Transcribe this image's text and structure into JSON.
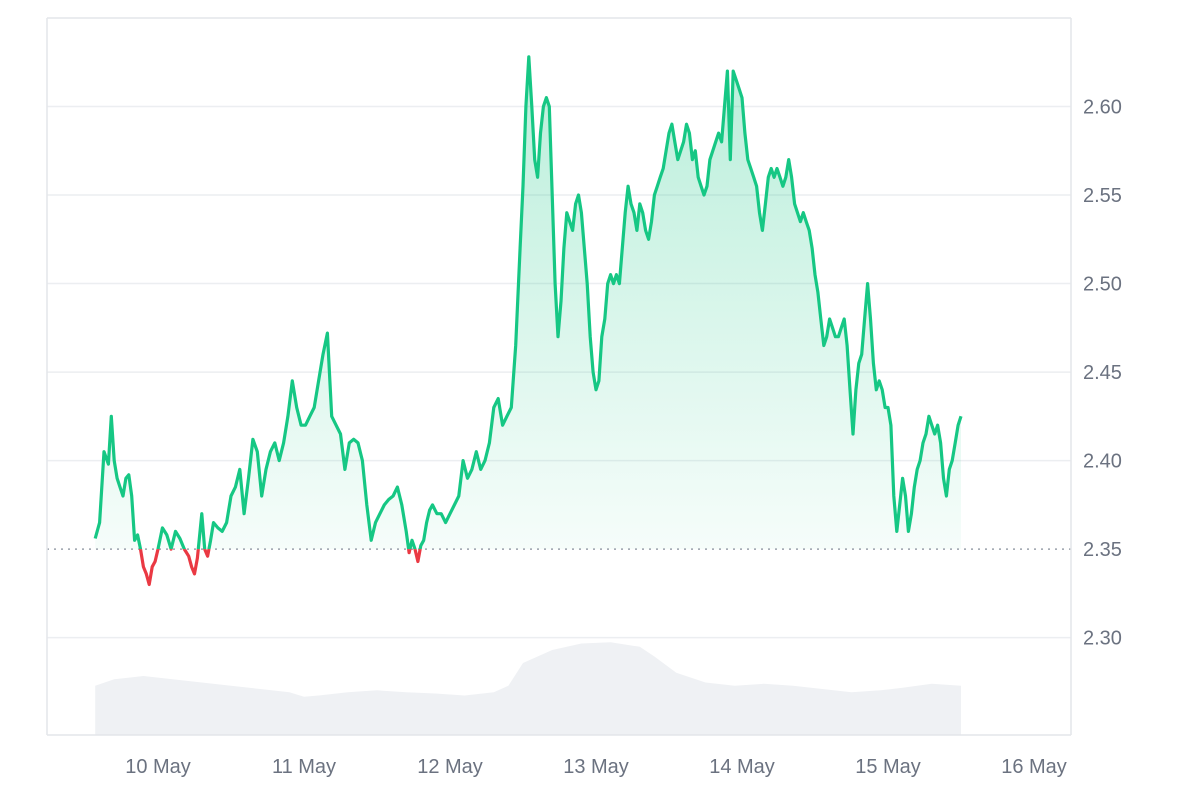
{
  "chart_data": {
    "type": "area",
    "title": "",
    "xlabel": "",
    "ylabel": "",
    "x_ticks": [
      "10 May",
      "11 May",
      "12 May",
      "13 May",
      "14 May",
      "15 May",
      "16 May"
    ],
    "y_ticks": [
      "2.60",
      "2.55",
      "2.50",
      "2.45",
      "2.40",
      "2.35",
      "2.30"
    ],
    "ylim": [
      2.245,
      2.65
    ],
    "grid": true,
    "baseline": 2.35,
    "colors": {
      "up": "#16c784",
      "down": "#ea3943",
      "volume": "#eff1f4",
      "baseline": "#9aa1ab"
    },
    "x_unit": "days since 9 May 00:00",
    "price_series": {
      "name": "Price",
      "points": [
        [
          0.57,
          2.356
        ],
        [
          0.6,
          2.365
        ],
        [
          0.63,
          2.405
        ],
        [
          0.66,
          2.398
        ],
        [
          0.68,
          2.425
        ],
        [
          0.7,
          2.4
        ],
        [
          0.72,
          2.39
        ],
        [
          0.74,
          2.385
        ],
        [
          0.76,
          2.38
        ],
        [
          0.78,
          2.39
        ],
        [
          0.8,
          2.392
        ],
        [
          0.82,
          2.38
        ],
        [
          0.84,
          2.355
        ],
        [
          0.86,
          2.358
        ],
        [
          0.88,
          2.35
        ],
        [
          0.9,
          2.34
        ],
        [
          0.92,
          2.336
        ],
        [
          0.94,
          2.33
        ],
        [
          0.96,
          2.34
        ],
        [
          0.98,
          2.343
        ],
        [
          1.0,
          2.35
        ],
        [
          1.03,
          2.362
        ],
        [
          1.06,
          2.358
        ],
        [
          1.09,
          2.35
        ],
        [
          1.12,
          2.36
        ],
        [
          1.15,
          2.356
        ],
        [
          1.18,
          2.35
        ],
        [
          1.21,
          2.346
        ],
        [
          1.23,
          2.34
        ],
        [
          1.25,
          2.336
        ],
        [
          1.27,
          2.345
        ],
        [
          1.3,
          2.37
        ],
        [
          1.32,
          2.35
        ],
        [
          1.34,
          2.346
        ],
        [
          1.36,
          2.355
        ],
        [
          1.38,
          2.365
        ],
        [
          1.41,
          2.362
        ],
        [
          1.44,
          2.36
        ],
        [
          1.47,
          2.365
        ],
        [
          1.5,
          2.38
        ],
        [
          1.53,
          2.385
        ],
        [
          1.56,
          2.395
        ],
        [
          1.59,
          2.37
        ],
        [
          1.62,
          2.39
        ],
        [
          1.65,
          2.412
        ],
        [
          1.68,
          2.405
        ],
        [
          1.71,
          2.38
        ],
        [
          1.74,
          2.395
        ],
        [
          1.77,
          2.405
        ],
        [
          1.8,
          2.41
        ],
        [
          1.83,
          2.4
        ],
        [
          1.86,
          2.41
        ],
        [
          1.89,
          2.425
        ],
        [
          1.92,
          2.445
        ],
        [
          1.95,
          2.43
        ],
        [
          1.98,
          2.42
        ],
        [
          2.01,
          2.42
        ],
        [
          2.04,
          2.425
        ],
        [
          2.07,
          2.43
        ],
        [
          2.1,
          2.445
        ],
        [
          2.13,
          2.46
        ],
        [
          2.16,
          2.472
        ],
        [
          2.19,
          2.425
        ],
        [
          2.22,
          2.42
        ],
        [
          2.25,
          2.415
        ],
        [
          2.28,
          2.395
        ],
        [
          2.31,
          2.41
        ],
        [
          2.34,
          2.412
        ],
        [
          2.37,
          2.41
        ],
        [
          2.4,
          2.4
        ],
        [
          2.43,
          2.375
        ],
        [
          2.46,
          2.355
        ],
        [
          2.49,
          2.365
        ],
        [
          2.52,
          2.37
        ],
        [
          2.55,
          2.375
        ],
        [
          2.58,
          2.378
        ],
        [
          2.61,
          2.38
        ],
        [
          2.64,
          2.385
        ],
        [
          2.67,
          2.375
        ],
        [
          2.7,
          2.36
        ],
        [
          2.72,
          2.348
        ],
        [
          2.74,
          2.355
        ],
        [
          2.76,
          2.35
        ],
        [
          2.78,
          2.343
        ],
        [
          2.8,
          2.352
        ],
        [
          2.82,
          2.355
        ],
        [
          2.84,
          2.365
        ],
        [
          2.86,
          2.372
        ],
        [
          2.88,
          2.375
        ],
        [
          2.91,
          2.37
        ],
        [
          2.94,
          2.37
        ],
        [
          2.97,
          2.365
        ],
        [
          3.0,
          2.37
        ],
        [
          3.03,
          2.375
        ],
        [
          3.06,
          2.38
        ],
        [
          3.09,
          2.4
        ],
        [
          3.12,
          2.39
        ],
        [
          3.15,
          2.395
        ],
        [
          3.18,
          2.405
        ],
        [
          3.21,
          2.395
        ],
        [
          3.24,
          2.4
        ],
        [
          3.27,
          2.41
        ],
        [
          3.3,
          2.43
        ],
        [
          3.33,
          2.435
        ],
        [
          3.36,
          2.42
        ],
        [
          3.39,
          2.425
        ],
        [
          3.42,
          2.43
        ],
        [
          3.45,
          2.465
        ],
        [
          3.48,
          2.52
        ],
        [
          3.5,
          2.555
        ],
        [
          3.52,
          2.6
        ],
        [
          3.54,
          2.628
        ],
        [
          3.56,
          2.6
        ],
        [
          3.58,
          2.57
        ],
        [
          3.6,
          2.56
        ],
        [
          3.62,
          2.585
        ],
        [
          3.64,
          2.6
        ],
        [
          3.66,
          2.605
        ],
        [
          3.68,
          2.6
        ],
        [
          3.7,
          2.55
        ],
        [
          3.72,
          2.5
        ],
        [
          3.74,
          2.47
        ],
        [
          3.76,
          2.49
        ],
        [
          3.78,
          2.52
        ],
        [
          3.8,
          2.54
        ],
        [
          3.82,
          2.535
        ],
        [
          3.84,
          2.53
        ],
        [
          3.86,
          2.545
        ],
        [
          3.88,
          2.55
        ],
        [
          3.9,
          2.54
        ],
        [
          3.92,
          2.52
        ],
        [
          3.94,
          2.5
        ],
        [
          3.96,
          2.47
        ],
        [
          3.98,
          2.45
        ],
        [
          4.0,
          2.44
        ],
        [
          4.02,
          2.445
        ],
        [
          4.04,
          2.47
        ],
        [
          4.06,
          2.48
        ],
        [
          4.08,
          2.5
        ],
        [
          4.1,
          2.505
        ],
        [
          4.12,
          2.5
        ],
        [
          4.14,
          2.505
        ],
        [
          4.16,
          2.5
        ],
        [
          4.18,
          2.52
        ],
        [
          4.2,
          2.54
        ],
        [
          4.22,
          2.555
        ],
        [
          4.24,
          2.545
        ],
        [
          4.26,
          2.54
        ],
        [
          4.28,
          2.53
        ],
        [
          4.3,
          2.545
        ],
        [
          4.32,
          2.54
        ],
        [
          4.34,
          2.53
        ],
        [
          4.36,
          2.525
        ],
        [
          4.38,
          2.535
        ],
        [
          4.4,
          2.55
        ],
        [
          4.42,
          2.555
        ],
        [
          4.44,
          2.56
        ],
        [
          4.46,
          2.565
        ],
        [
          4.48,
          2.575
        ],
        [
          4.5,
          2.585
        ],
        [
          4.52,
          2.59
        ],
        [
          4.54,
          2.58
        ],
        [
          4.56,
          2.57
        ],
        [
          4.58,
          2.575
        ],
        [
          4.6,
          2.58
        ],
        [
          4.62,
          2.59
        ],
        [
          4.64,
          2.585
        ],
        [
          4.66,
          2.57
        ],
        [
          4.68,
          2.575
        ],
        [
          4.7,
          2.56
        ],
        [
          4.72,
          2.555
        ],
        [
          4.74,
          2.55
        ],
        [
          4.76,
          2.555
        ],
        [
          4.78,
          2.57
        ],
        [
          4.8,
          2.575
        ],
        [
          4.82,
          2.58
        ],
        [
          4.84,
          2.585
        ],
        [
          4.86,
          2.58
        ],
        [
          4.88,
          2.6
        ],
        [
          4.9,
          2.62
        ],
        [
          4.92,
          2.57
        ],
        [
          4.94,
          2.62
        ],
        [
          4.96,
          2.615
        ],
        [
          4.98,
          2.61
        ],
        [
          5.0,
          2.605
        ],
        [
          5.02,
          2.585
        ],
        [
          5.04,
          2.57
        ],
        [
          5.06,
          2.565
        ],
        [
          5.08,
          2.56
        ],
        [
          5.1,
          2.555
        ],
        [
          5.12,
          2.54
        ],
        [
          5.14,
          2.53
        ],
        [
          5.16,
          2.545
        ],
        [
          5.18,
          2.56
        ],
        [
          5.2,
          2.565
        ],
        [
          5.22,
          2.56
        ],
        [
          5.24,
          2.565
        ],
        [
          5.26,
          2.56
        ],
        [
          5.28,
          2.555
        ],
        [
          5.3,
          2.56
        ],
        [
          5.32,
          2.57
        ],
        [
          5.34,
          2.56
        ],
        [
          5.36,
          2.545
        ],
        [
          5.38,
          2.54
        ],
        [
          5.4,
          2.535
        ],
        [
          5.42,
          2.54
        ],
        [
          5.44,
          2.535
        ],
        [
          5.46,
          2.53
        ],
        [
          5.48,
          2.52
        ],
        [
          5.5,
          2.505
        ],
        [
          5.52,
          2.495
        ],
        [
          5.54,
          2.48
        ],
        [
          5.56,
          2.465
        ],
        [
          5.58,
          2.47
        ],
        [
          5.6,
          2.48
        ],
        [
          5.62,
          2.475
        ],
        [
          5.64,
          2.47
        ],
        [
          5.66,
          2.47
        ],
        [
          5.68,
          2.475
        ],
        [
          5.7,
          2.48
        ],
        [
          5.72,
          2.465
        ],
        [
          5.74,
          2.44
        ],
        [
          5.76,
          2.415
        ],
        [
          5.78,
          2.44
        ],
        [
          5.8,
          2.455
        ],
        [
          5.82,
          2.46
        ],
        [
          5.84,
          2.48
        ],
        [
          5.86,
          2.5
        ],
        [
          5.88,
          2.48
        ],
        [
          5.9,
          2.455
        ],
        [
          5.92,
          2.44
        ],
        [
          5.94,
          2.445
        ],
        [
          5.96,
          2.44
        ],
        [
          5.98,
          2.43
        ],
        [
          6.0,
          2.43
        ],
        [
          6.02,
          2.42
        ],
        [
          6.04,
          2.38
        ],
        [
          6.06,
          2.36
        ],
        [
          6.08,
          2.375
        ],
        [
          6.1,
          2.39
        ],
        [
          6.12,
          2.38
        ],
        [
          6.14,
          2.36
        ],
        [
          6.16,
          2.37
        ],
        [
          6.18,
          2.385
        ],
        [
          6.2,
          2.395
        ],
        [
          6.22,
          2.4
        ],
        [
          6.24,
          2.41
        ],
        [
          6.26,
          2.415
        ],
        [
          6.28,
          2.425
        ],
        [
          6.3,
          2.42
        ],
        [
          6.32,
          2.415
        ],
        [
          6.34,
          2.42
        ],
        [
          6.36,
          2.41
        ],
        [
          6.38,
          2.39
        ],
        [
          6.4,
          2.38
        ],
        [
          6.42,
          2.395
        ],
        [
          6.44,
          2.4
        ],
        [
          6.46,
          2.41
        ],
        [
          6.48,
          2.42
        ],
        [
          6.5,
          2.425
        ]
      ]
    },
    "volume_series": {
      "name": "Volume",
      "points": [
        [
          0.57,
          0.45
        ],
        [
          0.7,
          0.55
        ],
        [
          0.9,
          0.6
        ],
        [
          1.1,
          0.55
        ],
        [
          1.3,
          0.5
        ],
        [
          1.5,
          0.45
        ],
        [
          1.7,
          0.4
        ],
        [
          1.9,
          0.35
        ],
        [
          2.0,
          0.28
        ],
        [
          2.1,
          0.3
        ],
        [
          2.3,
          0.35
        ],
        [
          2.5,
          0.38
        ],
        [
          2.7,
          0.35
        ],
        [
          2.9,
          0.33
        ],
        [
          3.1,
          0.3
        ],
        [
          3.3,
          0.35
        ],
        [
          3.4,
          0.45
        ],
        [
          3.5,
          0.8
        ],
        [
          3.6,
          0.9
        ],
        [
          3.7,
          1.0
        ],
        [
          3.9,
          1.1
        ],
        [
          4.1,
          1.12
        ],
        [
          4.3,
          1.05
        ],
        [
          4.4,
          0.9
        ],
        [
          4.55,
          0.65
        ],
        [
          4.75,
          0.5
        ],
        [
          4.95,
          0.45
        ],
        [
          5.15,
          0.48
        ],
        [
          5.35,
          0.45
        ],
        [
          5.55,
          0.4
        ],
        [
          5.75,
          0.35
        ],
        [
          5.95,
          0.38
        ],
        [
          6.1,
          0.42
        ],
        [
          6.3,
          0.48
        ],
        [
          6.5,
          0.45
        ]
      ]
    }
  }
}
